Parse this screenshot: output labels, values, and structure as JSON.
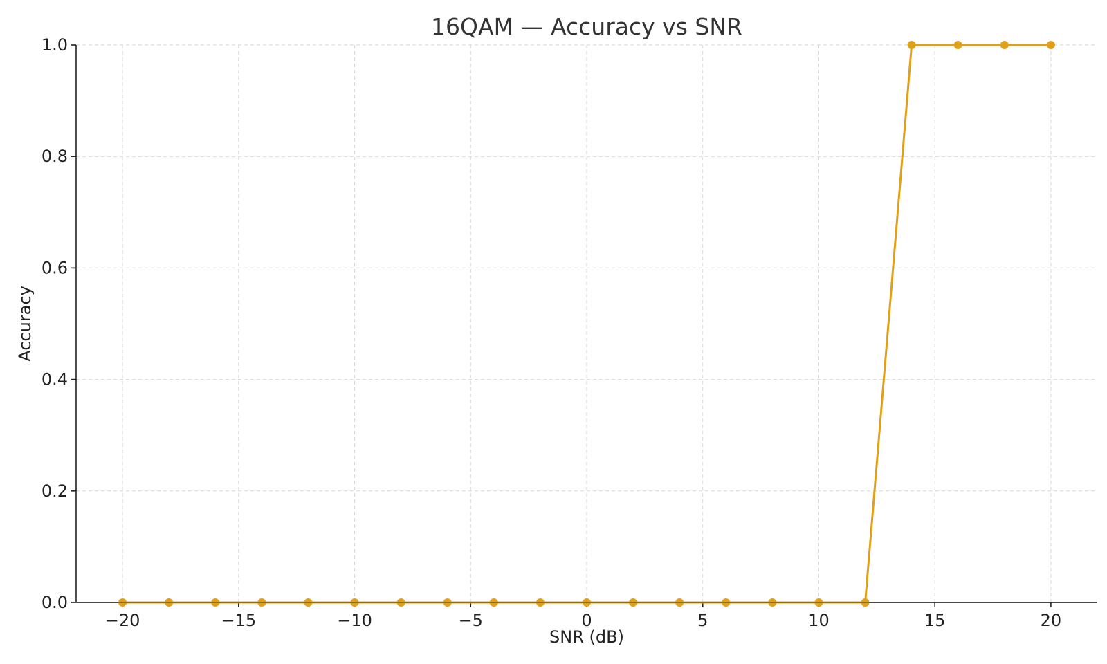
{
  "chart_data": {
    "type": "line",
    "title": "16QAM — Accuracy vs SNR",
    "xlabel": "SNR (dB)",
    "ylabel": "Accuracy",
    "xlim": [
      -22,
      22
    ],
    "ylim": [
      0.0,
      1.0
    ],
    "x_ticks": [
      -20,
      -15,
      -10,
      -5,
      0,
      5,
      10,
      15,
      20
    ],
    "x_tick_labels": [
      "−20",
      "−15",
      "−10",
      "−5",
      "0",
      "5",
      "10",
      "15",
      "20"
    ],
    "y_ticks": [
      0.0,
      0.2,
      0.4,
      0.6,
      0.8,
      1.0
    ],
    "y_tick_labels": [
      "0.0",
      "0.2",
      "0.4",
      "0.6",
      "0.8",
      "1.0"
    ],
    "grid": true,
    "series": [
      {
        "color": "#e0a019",
        "marker": "circle",
        "x": [
          -20,
          -18,
          -16,
          -14,
          -12,
          -10,
          -8,
          -6,
          -4,
          -2,
          0,
          2,
          4,
          6,
          8,
          10,
          12,
          14,
          16,
          18,
          20
        ],
        "y": [
          0,
          0,
          0,
          0,
          0,
          0,
          0,
          0,
          0,
          0,
          0,
          0,
          0,
          0,
          0,
          0,
          0,
          1,
          1,
          1,
          1
        ]
      }
    ]
  }
}
